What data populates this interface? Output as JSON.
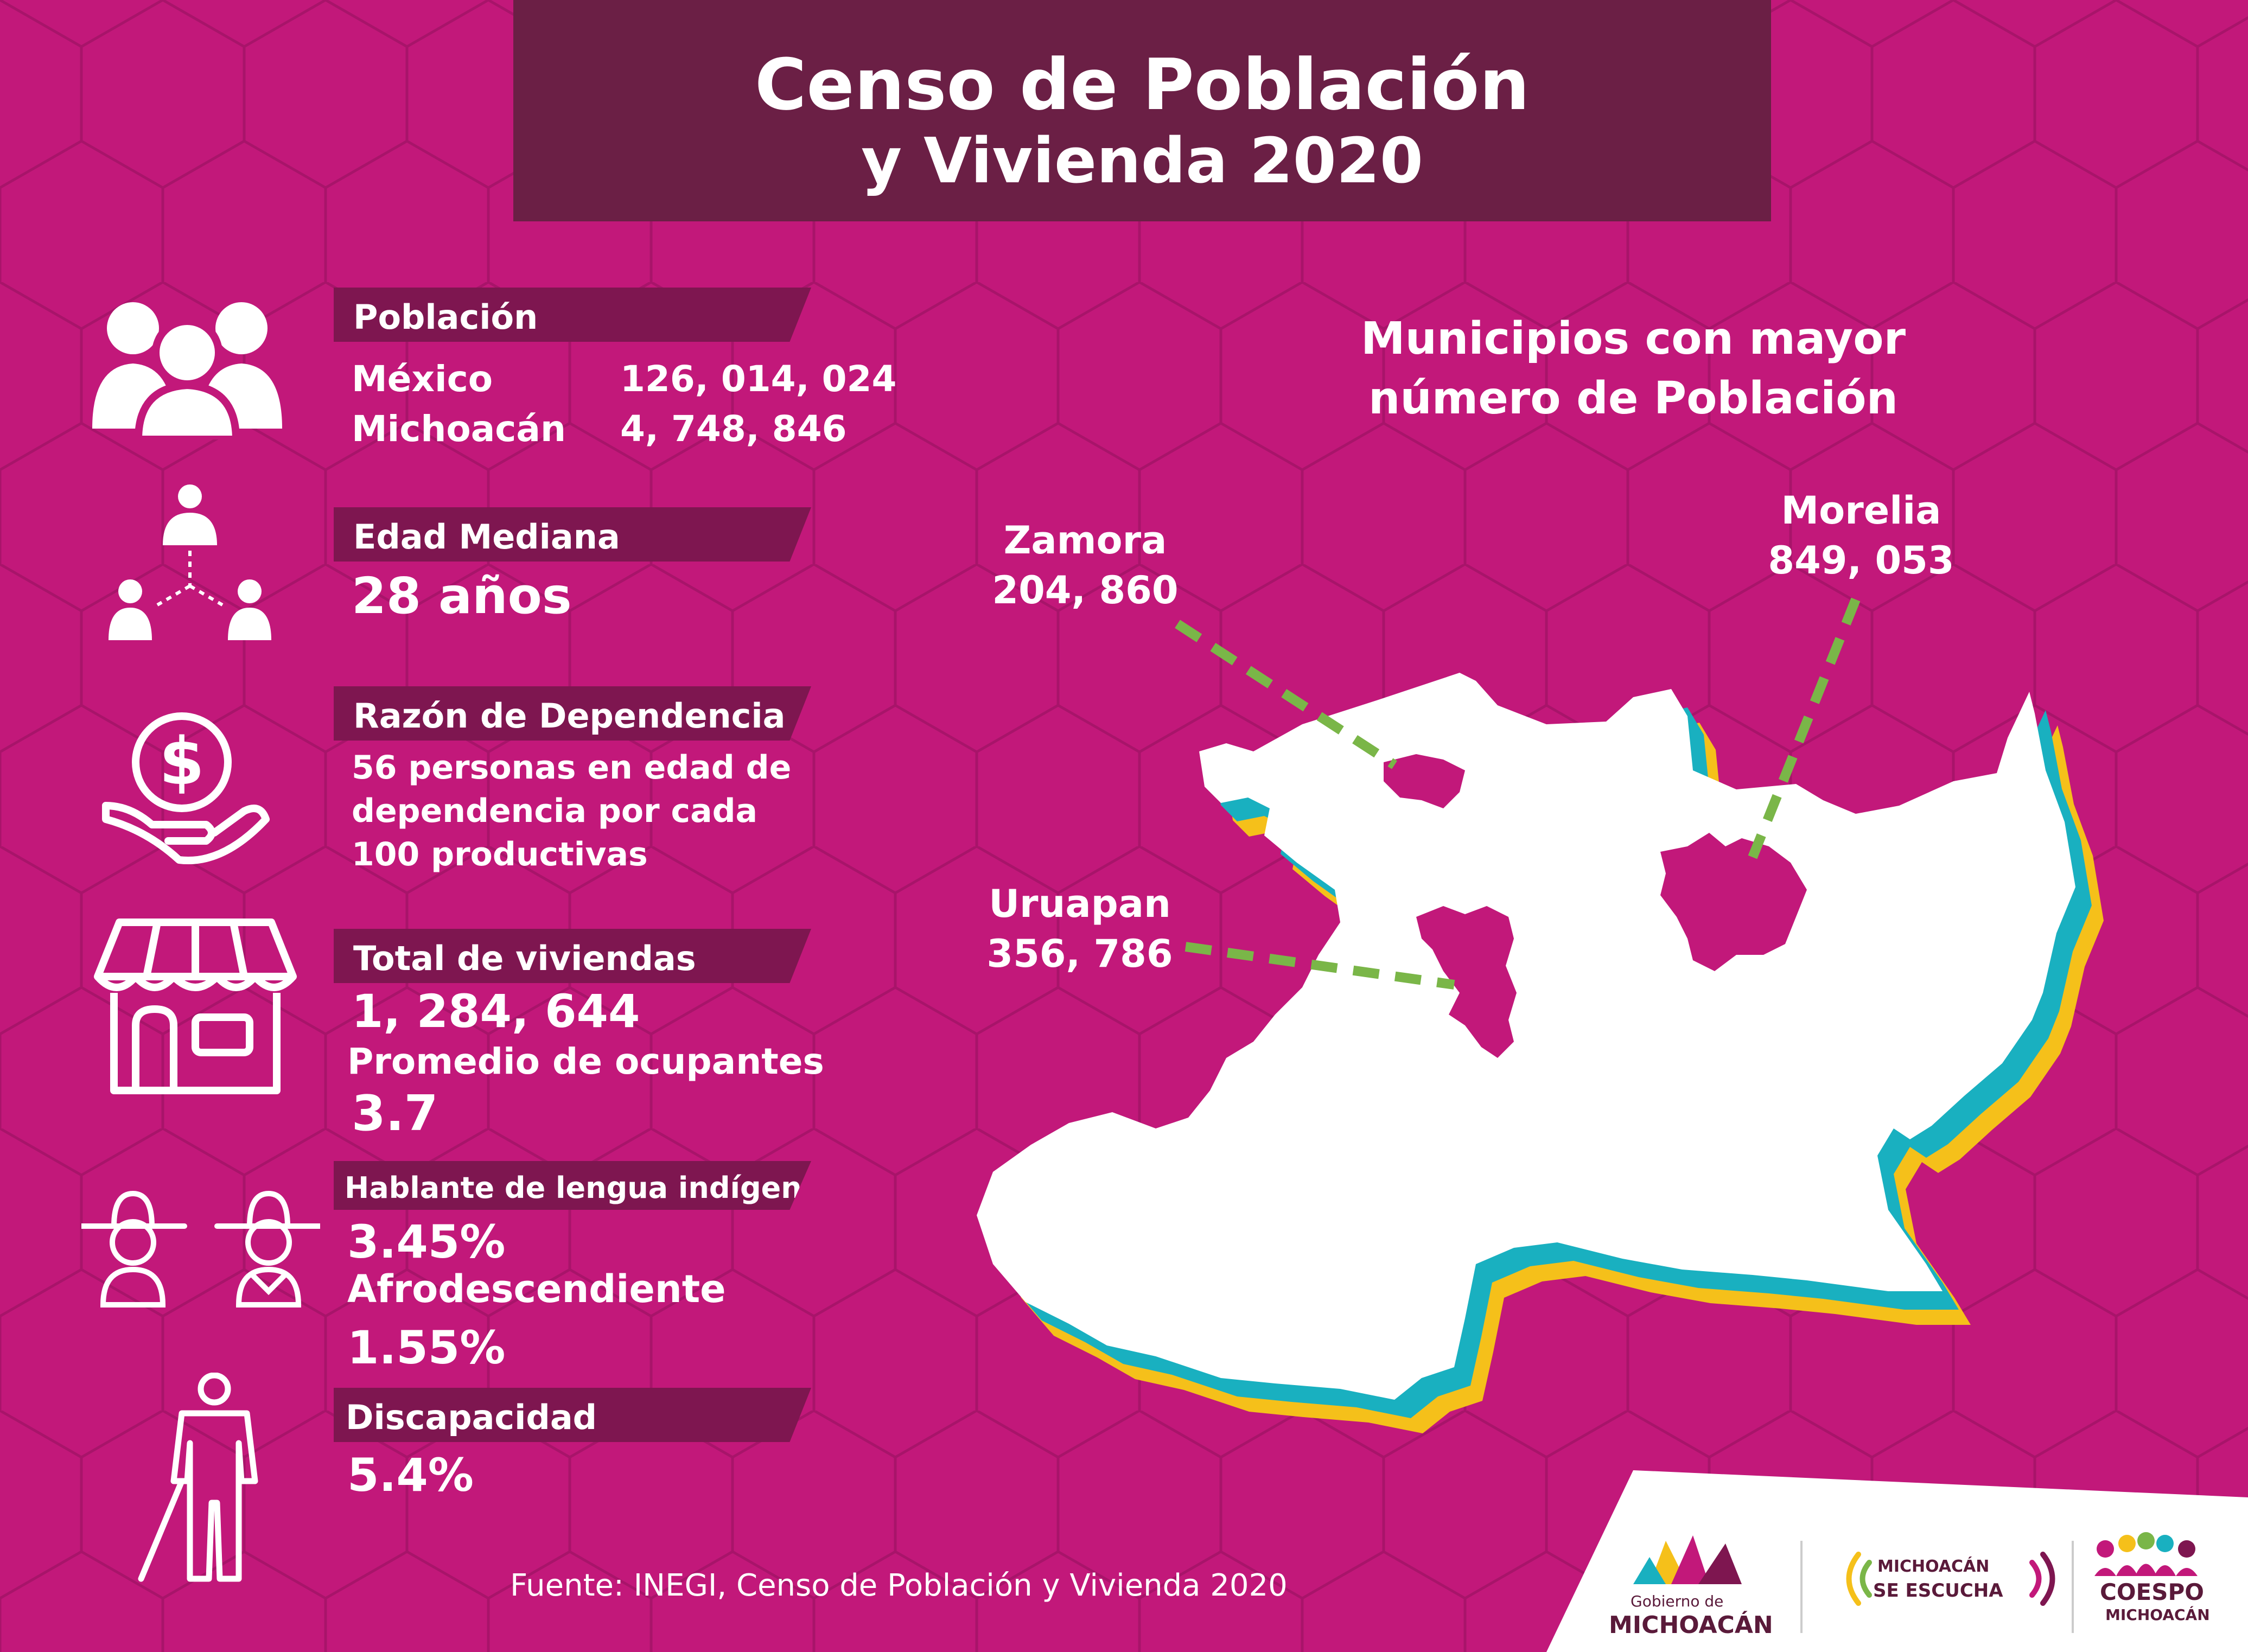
{
  "header": {
    "title_line1": "Censo de Población",
    "title_line2": "y Vivienda 2020"
  },
  "poblacion": {
    "label": "Población",
    "mexico_label": "México",
    "mexico_value": "126, 014, 024",
    "michoacan_label": "Michoacán",
    "michoacan_value": "4, 748, 846"
  },
  "edad": {
    "label": "Edad Mediana",
    "value": "28 años"
  },
  "dependencia": {
    "label": "Razón de Dependencia",
    "line1": "56 personas en edad de",
    "line2": "dependencia por cada",
    "line3": "100 productivas"
  },
  "viviendas": {
    "label": "Total de viviendas",
    "value": "1, 284, 644",
    "promedio_label": "Promedio de ocupantes",
    "promedio_value": "3.7"
  },
  "lengua": {
    "label": "Hablante de lengua indígena",
    "value": "3.45%",
    "afro_label": "Afrodescendiente",
    "afro_value": "1.55%"
  },
  "discapacidad": {
    "label": "Discapacidad",
    "value": "5.4%"
  },
  "map": {
    "title_line1": "Municipios con mayor",
    "title_line2": "número de Población",
    "cities": [
      {
        "name": "Zamora",
        "value": "204, 860"
      },
      {
        "name": "Morelia",
        "value": "849, 053"
      },
      {
        "name": "Uruapan",
        "value": "356, 786"
      }
    ]
  },
  "footer": {
    "source": "Fuente: INEGI, Censo de Población y Vivienda 2020",
    "logo1_small": "Gobierno de",
    "logo1_big": "MICHOACÁN",
    "logo2_line1": "MICHOACÁN",
    "logo2_line2": "SE ESCUCHA",
    "logo3_line1": "COESPO",
    "logo3_line2": "MICHOACÁN"
  },
  "colors": {
    "background": "#c2187a",
    "header": "#6b1f45",
    "tag": "#7e1650",
    "accent_teal": "#19b0c0",
    "accent_yellow": "#f5c01a",
    "leader_green": "#7ab648"
  }
}
